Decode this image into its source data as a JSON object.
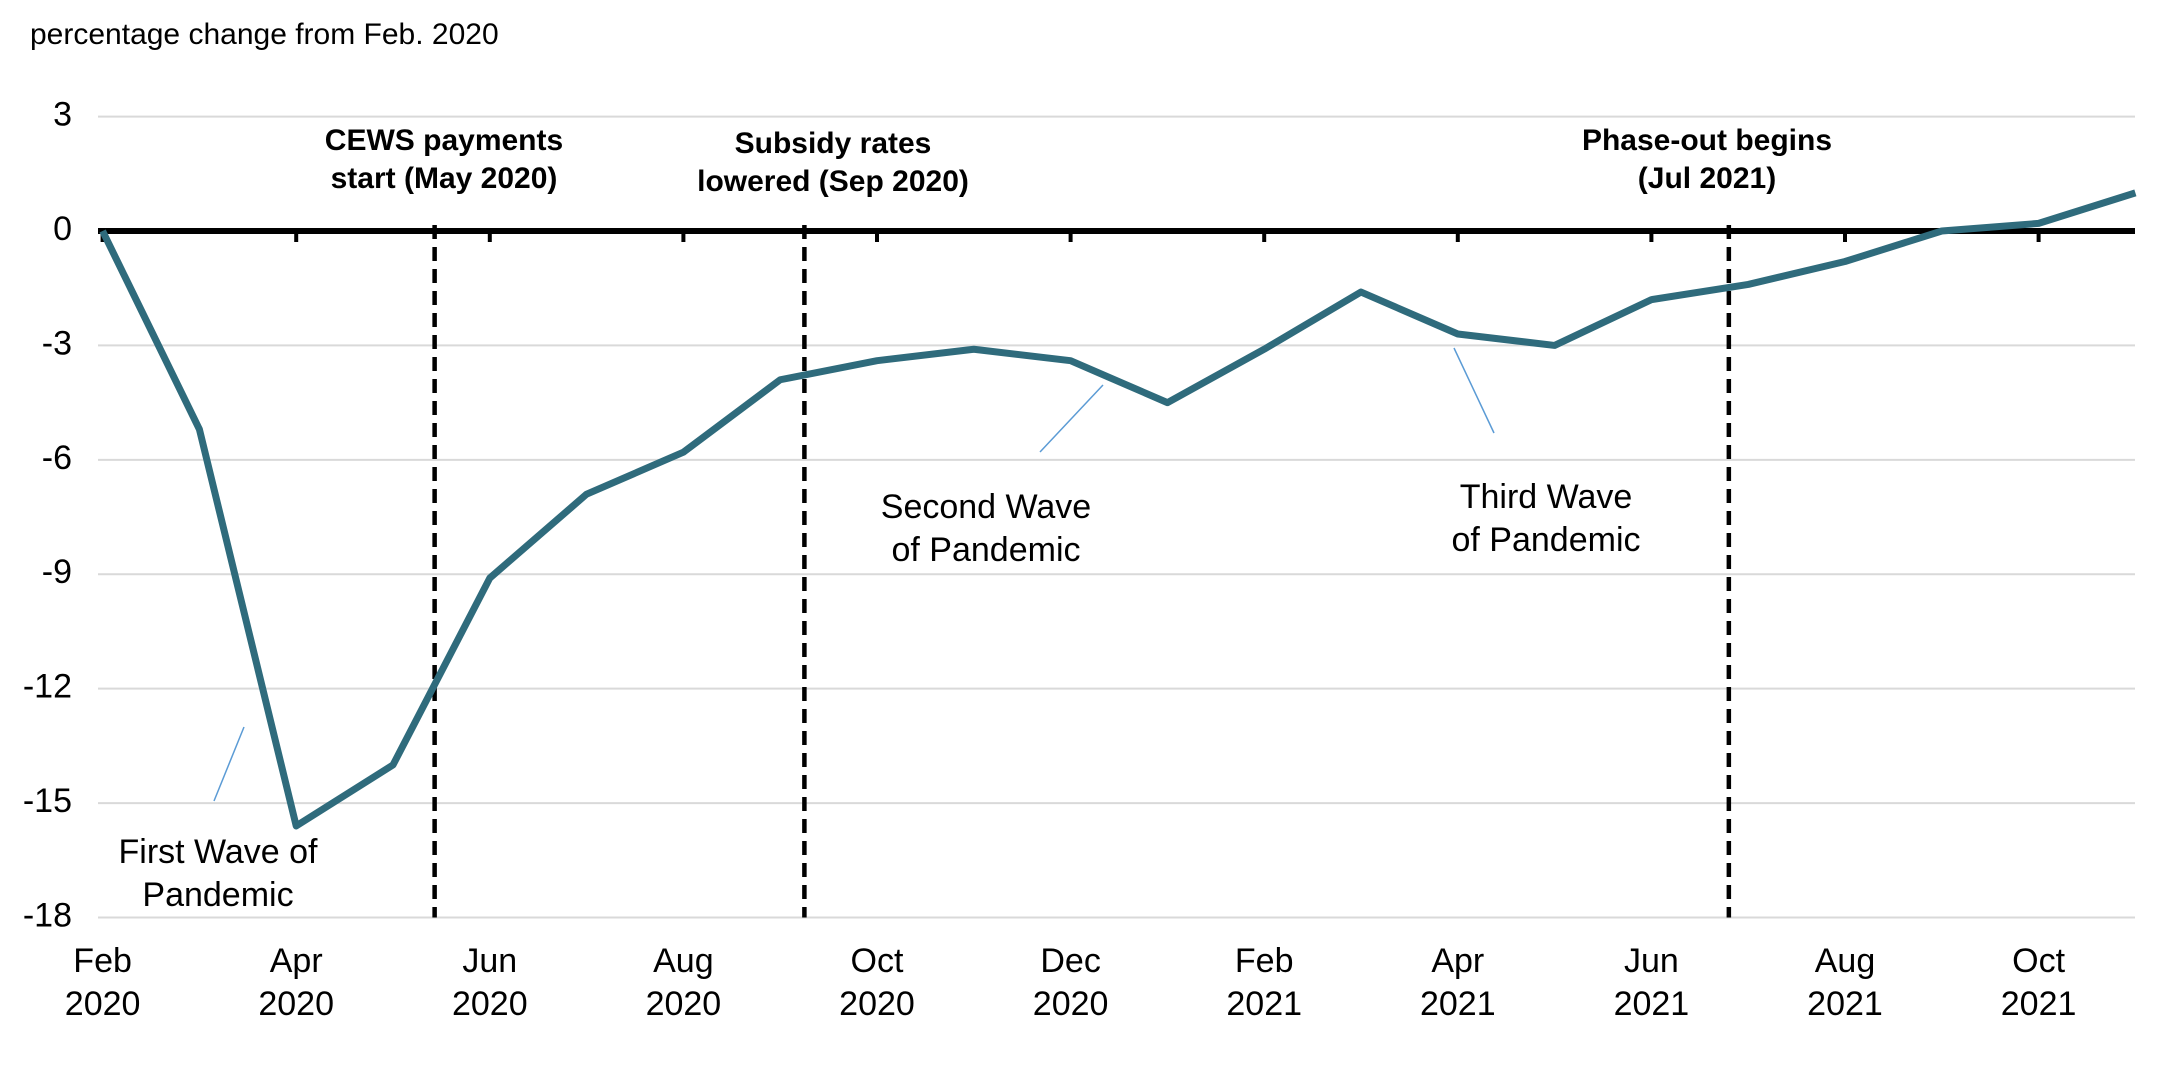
{
  "chart_data": {
    "type": "line",
    "y_axis_label": "percentage change from Feb. 2020",
    "categories": [
      "Feb 2020",
      null,
      "Apr 2020",
      null,
      "Jun 2020",
      null,
      "Aug 2020",
      null,
      "Oct 2020",
      null,
      "Dec 2020",
      null,
      "Feb 2021",
      null,
      "Apr 2021",
      null,
      "Jun 2021",
      null,
      "Aug 2021",
      null,
      "Oct 2021",
      null
    ],
    "series": [
      {
        "color": "#2f6b7c",
        "values": [
          0,
          -5.2,
          -15.6,
          -14.0,
          -9.1,
          -6.9,
          -5.8,
          -3.9,
          -3.4,
          -3.1,
          -3.4,
          -4.5,
          -3.1,
          -1.6,
          -2.7,
          -3.0,
          -1.8,
          -1.4,
          -0.8,
          0.0,
          0.2,
          1.0
        ]
      }
    ],
    "ylim": [
      -18,
      3
    ],
    "yticks": [
      -18,
      -15,
      -12,
      -9,
      -6,
      -3,
      0,
      3
    ],
    "grid": true,
    "events": [
      {
        "x": 3.43,
        "lines": [
          "CEWS payments",
          "start (May 2020)"
        ]
      },
      {
        "x": 7.25,
        "lines": [
          "Subsidy rates",
          "lowered (Sep 2020)"
        ]
      },
      {
        "x": 16.8,
        "lines": [
          "Phase-out begins",
          "(Jul 2021)"
        ]
      }
    ],
    "wave_labels": [
      {
        "lines": [
          "First Wave of",
          "Pandemic"
        ]
      },
      {
        "lines": [
          "Second Wave",
          "of Pandemic"
        ]
      },
      {
        "lines": [
          "Third Wave",
          "of Pandemic"
        ]
      }
    ]
  }
}
